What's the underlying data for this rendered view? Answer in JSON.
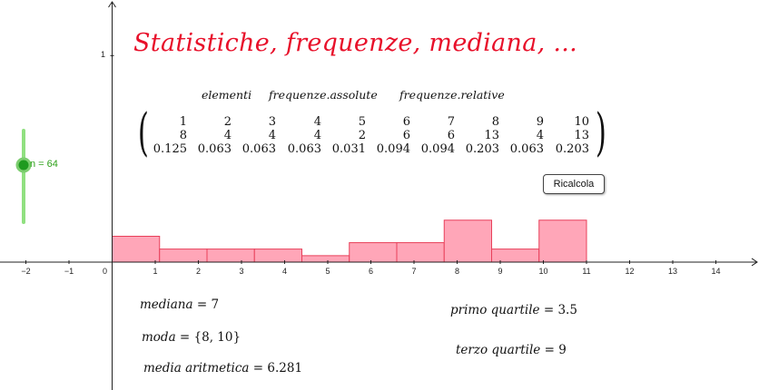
{
  "title": "Statistiche,  frequenze,  mediana, ...",
  "matrix": {
    "headers": [
      "elementi",
      "frequenze.assolute",
      "frequenze.relative"
    ],
    "rows": [
      [
        "1",
        "2",
        "3",
        "4",
        "5",
        "6",
        "7",
        "8",
        "9",
        "10"
      ],
      [
        "8",
        "4",
        "4",
        "4",
        "2",
        "6",
        "6",
        "13",
        "4",
        "13"
      ],
      [
        "0.125",
        "0.063",
        "0.063",
        "0.063",
        "0.031",
        "0.094",
        "0.094",
        "0.203",
        "0.063",
        "0.203"
      ]
    ]
  },
  "slider": {
    "label": "n = 64",
    "value": 64
  },
  "button": {
    "label": "Ricalcola"
  },
  "stats": {
    "mediana": {
      "label": "mediana",
      "value": "7"
    },
    "moda": {
      "label": "moda",
      "value": "{8, 10}"
    },
    "media": {
      "label": "media aritmetica",
      "value": "6.281"
    },
    "primo_quartile": {
      "label": "primo quartile",
      "value": "3.5"
    },
    "terzo_quartile": {
      "label": "terzo quartile",
      "value": "9"
    }
  },
  "colors": {
    "title": "#e8102a",
    "bar_fill": "#ffa6b8",
    "bar_stroke": "#e8405a",
    "slider_track": "#90e080",
    "slider_knob": "#1f9a1f"
  },
  "chart_data": {
    "type": "bar",
    "categories": [
      "1",
      "2",
      "3",
      "4",
      "5",
      "6",
      "7",
      "8",
      "9",
      "10"
    ],
    "values": [
      0.125,
      0.063,
      0.063,
      0.063,
      0.031,
      0.094,
      0.094,
      0.203,
      0.063,
      0.203
    ],
    "x_ticks": [
      "−2",
      "−1",
      "0",
      "1",
      "2",
      "3",
      "4",
      "5",
      "6",
      "7",
      "8",
      "9",
      "10",
      "11",
      "12",
      "13",
      "14"
    ],
    "y_ticks": [
      "1"
    ],
    "xlim": [
      -2.6,
      15
    ],
    "ylim": [
      -0.62,
      1.27
    ],
    "bar_range": [
      0,
      11
    ],
    "grid": false
  }
}
